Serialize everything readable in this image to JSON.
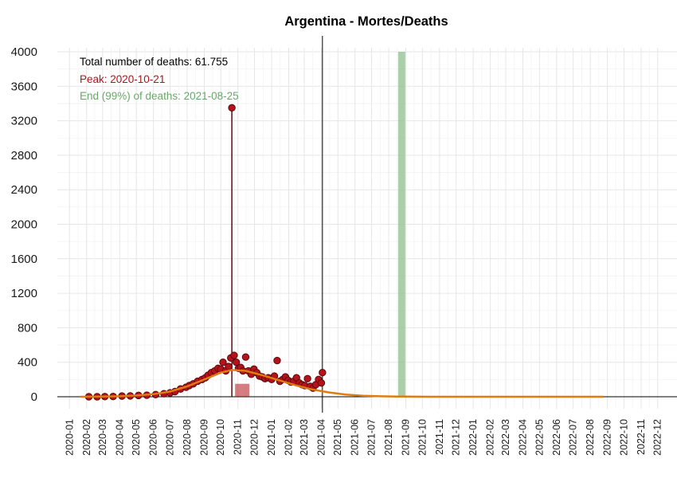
{
  "chart_data": {
    "type": "scatter",
    "title": "Argentina - Mortes/Deaths",
    "xlabel": "",
    "ylabel": "",
    "ylim": [
      0,
      4000
    ],
    "yticks": [
      0,
      400,
      800,
      1200,
      1600,
      2000,
      2400,
      2800,
      3200,
      3600,
      4000
    ],
    "xlim": [
      "2019-12-10",
      "2023-01-05"
    ],
    "xticks": [
      "2020-01",
      "2020-02",
      "2020-03",
      "2020-04",
      "2020-05",
      "2020-06",
      "2020-07",
      "2020-08",
      "2020-09",
      "2020-10",
      "2020-11",
      "2020-12",
      "2021-01",
      "2021-02",
      "2021-03",
      "2021-04",
      "2021-05",
      "2021-06",
      "2021-07",
      "2021-08",
      "2021-09",
      "2021-10",
      "2021-11",
      "2021-12",
      "2022-01",
      "2022-02",
      "2022-03",
      "2022-04",
      "2022-05",
      "2022-06",
      "2022-07",
      "2022-08",
      "2022-09",
      "2022-10",
      "2022-11",
      "2022-12"
    ],
    "grid": true,
    "annotations": {
      "total": "Total number of deaths: 61.755",
      "peak": "Peak: 2020-10-21",
      "end": "End (99%) of deaths: 2021-08-25"
    },
    "colors": {
      "points": "#b5121b",
      "point_stroke": "#5a0a0e",
      "fit": "#e07b12",
      "band": "#8fbf8f",
      "total_text": "#000000",
      "peak_text": "#b5121b",
      "end_text": "#6aa86a"
    },
    "series": [
      {
        "type": "scatter",
        "x": [
          "2020-02-05",
          "2020-02-20",
          "2020-03-05",
          "2020-03-20",
          "2020-04-05",
          "2020-04-20",
          "2020-05-05",
          "2020-05-20",
          "2020-06-05",
          "2020-06-20",
          "2020-07-01",
          "2020-07-10",
          "2020-07-20",
          "2020-07-30",
          "2020-08-05",
          "2020-08-12",
          "2020-08-20",
          "2020-08-28",
          "2020-09-03",
          "2020-09-08",
          "2020-09-14",
          "2020-09-20",
          "2020-09-26",
          "2020-10-01",
          "2020-10-05",
          "2020-10-10",
          "2020-10-15",
          "2020-10-19",
          "2020-10-21",
          "2020-10-25",
          "2020-10-29",
          "2020-11-02",
          "2020-11-06",
          "2020-11-10",
          "2020-11-15",
          "2020-11-20",
          "2020-11-25",
          "2020-11-30",
          "2020-12-05",
          "2020-12-10",
          "2020-12-15",
          "2020-12-20",
          "2020-12-26",
          "2021-01-01",
          "2021-01-06",
          "2021-01-11",
          "2021-01-16",
          "2021-01-21",
          "2021-01-26",
          "2021-01-31",
          "2021-02-05",
          "2021-02-10",
          "2021-02-15",
          "2021-02-20",
          "2021-02-25",
          "2021-03-02",
          "2021-03-07",
          "2021-03-12",
          "2021-03-17",
          "2021-03-22",
          "2021-03-27",
          "2021-04-01",
          "2021-04-03"
        ],
        "y": [
          0,
          0,
          2,
          3,
          8,
          10,
          15,
          18,
          25,
          35,
          45,
          60,
          90,
          110,
          130,
          150,
          180,
          200,
          220,
          250,
          280,
          300,
          330,
          320,
          400,
          300,
          350,
          450,
          3350,
          480,
          400,
          330,
          340,
          300,
          460,
          300,
          260,
          320,
          280,
          240,
          230,
          210,
          220,
          200,
          240,
          420,
          180,
          200,
          230,
          190,
          170,
          180,
          220,
          160,
          140,
          130,
          210,
          120,
          100,
          140,
          200,
          160,
          280
        ]
      },
      {
        "type": "line",
        "name": "fit",
        "x": [
          "2020-01-20",
          "2020-03-01",
          "2020-04-01",
          "2020-05-01",
          "2020-06-01",
          "2020-07-01",
          "2020-08-01",
          "2020-09-01",
          "2020-10-01",
          "2020-10-21",
          "2020-11-15",
          "2020-12-15",
          "2021-01-15",
          "2021-02-15",
          "2021-03-15",
          "2021-04-15",
          "2021-05-15",
          "2021-06-15",
          "2021-07-15",
          "2021-08-15",
          "2021-09-15",
          "2021-10-15",
          "2022-01-01",
          "2022-04-01",
          "2022-08-25"
        ],
        "y": [
          0,
          2,
          6,
          15,
          30,
          60,
          120,
          200,
          280,
          310,
          300,
          250,
          190,
          130,
          85,
          50,
          25,
          12,
          6,
          3,
          1,
          0,
          0,
          0,
          0
        ]
      }
    ],
    "vline": "2021-04-03",
    "band": [
      "2021-08-18",
      "2021-08-31"
    ]
  }
}
